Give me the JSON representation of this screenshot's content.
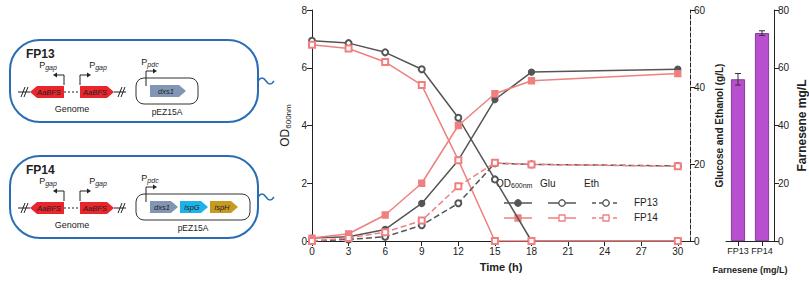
{
  "diagram": {
    "cells": [
      {
        "label": "FP13",
        "genome": {
          "label": "Genome",
          "promoters": [
            "Pgap",
            "Pgap"
          ],
          "genes": [
            {
              "label": "AaBFS",
              "color": "#e8262b"
            },
            {
              "label": "AaBFS",
              "color": "#e8262b"
            }
          ]
        },
        "plasmid": {
          "label": "pEZ15A",
          "promoter": "Ppdc",
          "genes": [
            {
              "label": "dxs1",
              "color": "#8096b4"
            }
          ]
        }
      },
      {
        "label": "FP14",
        "genome": {
          "label": "Genome",
          "promoters": [
            "Pgap",
            "Pgap"
          ],
          "genes": [
            {
              "label": "AaBFS",
              "color": "#e8262b"
            },
            {
              "label": "AaBFS",
              "color": "#e8262b"
            }
          ]
        },
        "plasmid": {
          "label": "pEZ15A",
          "promoter": "Ppdc",
          "genes": [
            {
              "label": "dxs1",
              "color": "#8096b4"
            },
            {
              "label": "ispG",
              "color": "#1fb2e8"
            },
            {
              "label": "ispH",
              "color": "#c99a22"
            }
          ]
        }
      }
    ]
  },
  "chart_data": [
    {
      "type": "line",
      "xlabel": "Time (h)",
      "ylabel": "OD600nm",
      "y2label": "Glucose and Ethanol (g/L)",
      "x": [
        0,
        3,
        6,
        9,
        12,
        15,
        18,
        30
      ],
      "xlim": [
        0,
        31
      ],
      "xticks": [
        0,
        3,
        6,
        9,
        12,
        15,
        18,
        21,
        24,
        27,
        30
      ],
      "ylim": [
        0,
        8
      ],
      "yticks": [
        0,
        2,
        4,
        6,
        8
      ],
      "y2lim": [
        0,
        60
      ],
      "y2ticks": [
        0,
        20,
        40,
        60
      ],
      "grid": false,
      "series": [
        {
          "name": "FP13",
          "measure": "OD600nm",
          "color": "#555555",
          "marker": "circle",
          "line_style": "solid",
          "axis": "y",
          "values": [
            0.1,
            0.15,
            0.4,
            1.3,
            2.8,
            4.9,
            5.85,
            5.95
          ]
        },
        {
          "name": "FP14",
          "measure": "OD600nm",
          "color": "#f08080",
          "marker": "rect",
          "line_style": "solid",
          "axis": "y",
          "values": [
            0.1,
            0.25,
            0.9,
            2.0,
            4.0,
            5.1,
            5.55,
            5.8
          ]
        },
        {
          "name": "FP13",
          "measure": "Glu",
          "color": "#555555",
          "marker": "emptyCircle",
          "line_style": "solid",
          "axis": "y2",
          "values": [
            52,
            51.4,
            49,
            44.6,
            32,
            16,
            0,
            0
          ]
        },
        {
          "name": "FP14",
          "measure": "Glu",
          "color": "#f08080",
          "marker": "emptyRect",
          "line_style": "solid",
          "axis": "y2",
          "values": [
            51,
            50,
            46.5,
            40.5,
            21,
            0,
            0,
            0
          ]
        },
        {
          "name": "FP13",
          "measure": "Eth",
          "color": "#555555",
          "marker": "emptyCircle",
          "line_style": "dashed",
          "axis": "y2",
          "values": [
            0,
            0.4,
            1.1,
            4.1,
            9.8,
            20.2,
            19.9,
            19.5
          ]
        },
        {
          "name": "FP14",
          "measure": "Eth",
          "color": "#f08080",
          "marker": "emptyRect",
          "line_style": "dashed",
          "axis": "y2",
          "values": [
            0,
            0.8,
            2.3,
            5.3,
            14.2,
            20.3,
            19.9,
            19.4
          ]
        }
      ]
    },
    {
      "type": "bar",
      "xlabel": "Farnesene (mg/L)",
      "ylabel": "Farnesene mg/L",
      "categories": [
        "FP13",
        "FP14"
      ],
      "values": [
        56,
        72
      ],
      "errors": [
        2,
        0.8
      ],
      "colors": [
        "#b84fd0",
        "#b84fd0"
      ],
      "ylim": [
        0,
        80
      ],
      "yticks": [
        0,
        20,
        40,
        60,
        80
      ],
      "grid": false
    }
  ]
}
